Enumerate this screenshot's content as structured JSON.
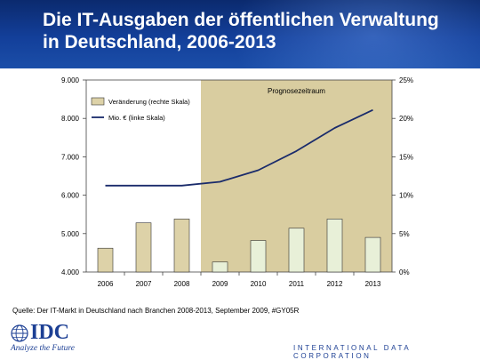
{
  "header": {
    "title_line1": "Die IT-Ausgaben der öffentlichen Verwaltung",
    "title_line2": "in Deutschland, 2006-2013"
  },
  "footer": {
    "source": "Quelle: Der IT-Markt in Deutschland nach Branchen 2008-2013, September 2009, #GY05R",
    "logo_name": "IDC",
    "logo_tagline": "Analyze the Future",
    "corporation": "INTERNATIONAL DATA CORPORATION"
  },
  "colors": {
    "bar_fill": "#ddd2a8",
    "bar_forecast_fill": "#e8f0d8",
    "forecast_band": "#d9cda0",
    "line": "#1a2b6b",
    "header": "#133f9a"
  },
  "chart_data": {
    "type": "bar",
    "categories": [
      "2006",
      "2007",
      "2008",
      "2009",
      "2010",
      "2011",
      "2012",
      "2013"
    ],
    "forecast_label": "Prognosezeitraum",
    "forecast_start": "2009",
    "series": [
      {
        "name": "Veränderung (rechte Skala)",
        "kind": "bar",
        "axis": "right",
        "values": [
          3.1,
          6.4,
          6.9,
          1.3,
          4.1,
          5.7,
          6.9,
          4.5
        ]
      },
      {
        "name": "Mio. € (linke Skala)",
        "kind": "line",
        "axis": "left",
        "values": [
          6250,
          6250,
          6250,
          6350,
          6650,
          7150,
          7750,
          8220
        ]
      }
    ],
    "y_left": {
      "ylim": [
        4000,
        9000
      ],
      "ticks": [
        "4.000",
        "5.000",
        "6.000",
        "7.000",
        "8.000",
        "9.000"
      ]
    },
    "y_right": {
      "ylim": [
        0,
        25
      ],
      "ticks": [
        "0%",
        "5%",
        "10%",
        "15%",
        "20%",
        "25%"
      ]
    },
    "legend_position": "top-left",
    "grid": false
  }
}
